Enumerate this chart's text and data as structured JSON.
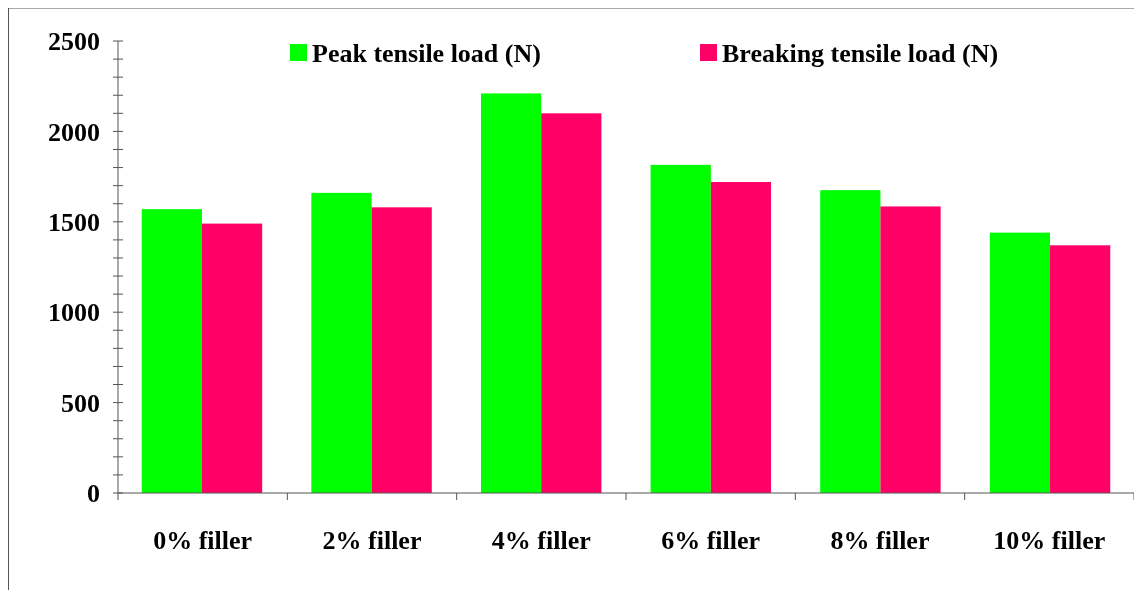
{
  "chart_data": {
    "type": "bar",
    "categories": [
      "0% filler",
      "2% filler",
      "4% filler",
      "6% filler",
      "8% filler",
      "10% filler"
    ],
    "series": [
      {
        "name": "Peak tensile load (N)",
        "color": "#00ff00",
        "values": [
          1570,
          1660,
          2210,
          1815,
          1675,
          1440
        ]
      },
      {
        "name": "Breaking tensile load (N)",
        "color": "#ff0066",
        "values": [
          1490,
          1580,
          2100,
          1720,
          1585,
          1370
        ]
      }
    ],
    "ylim": [
      0,
      2500
    ],
    "yticks": [
      0,
      {
        "value": 100,
        "label": null
      },
      {
        "value": 200,
        "label": null
      },
      {
        "value": 300,
        "label": null
      },
      {
        "value": 400,
        "label": null
      },
      500,
      {
        "value": 600,
        "label": null
      },
      {
        "value": 700,
        "label": null
      },
      {
        "value": 800,
        "label": null
      },
      {
        "value": 900,
        "label": null
      },
      1000,
      {
        "value": 1100,
        "label": null
      },
      {
        "value": 1200,
        "label": null
      },
      {
        "value": 1300,
        "label": null
      },
      {
        "value": 1400,
        "label": null
      },
      1500,
      {
        "value": 1600,
        "label": null
      },
      {
        "value": 1700,
        "label": null
      },
      {
        "value": 1800,
        "label": null
      },
      {
        "value": 1900,
        "label": null
      },
      2000,
      {
        "value": 2100,
        "label": null
      },
      {
        "value": 2200,
        "label": null
      },
      {
        "value": 2300,
        "label": null
      },
      {
        "value": 2400,
        "label": null
      },
      2500
    ],
    "grid": false,
    "legend": "top"
  }
}
